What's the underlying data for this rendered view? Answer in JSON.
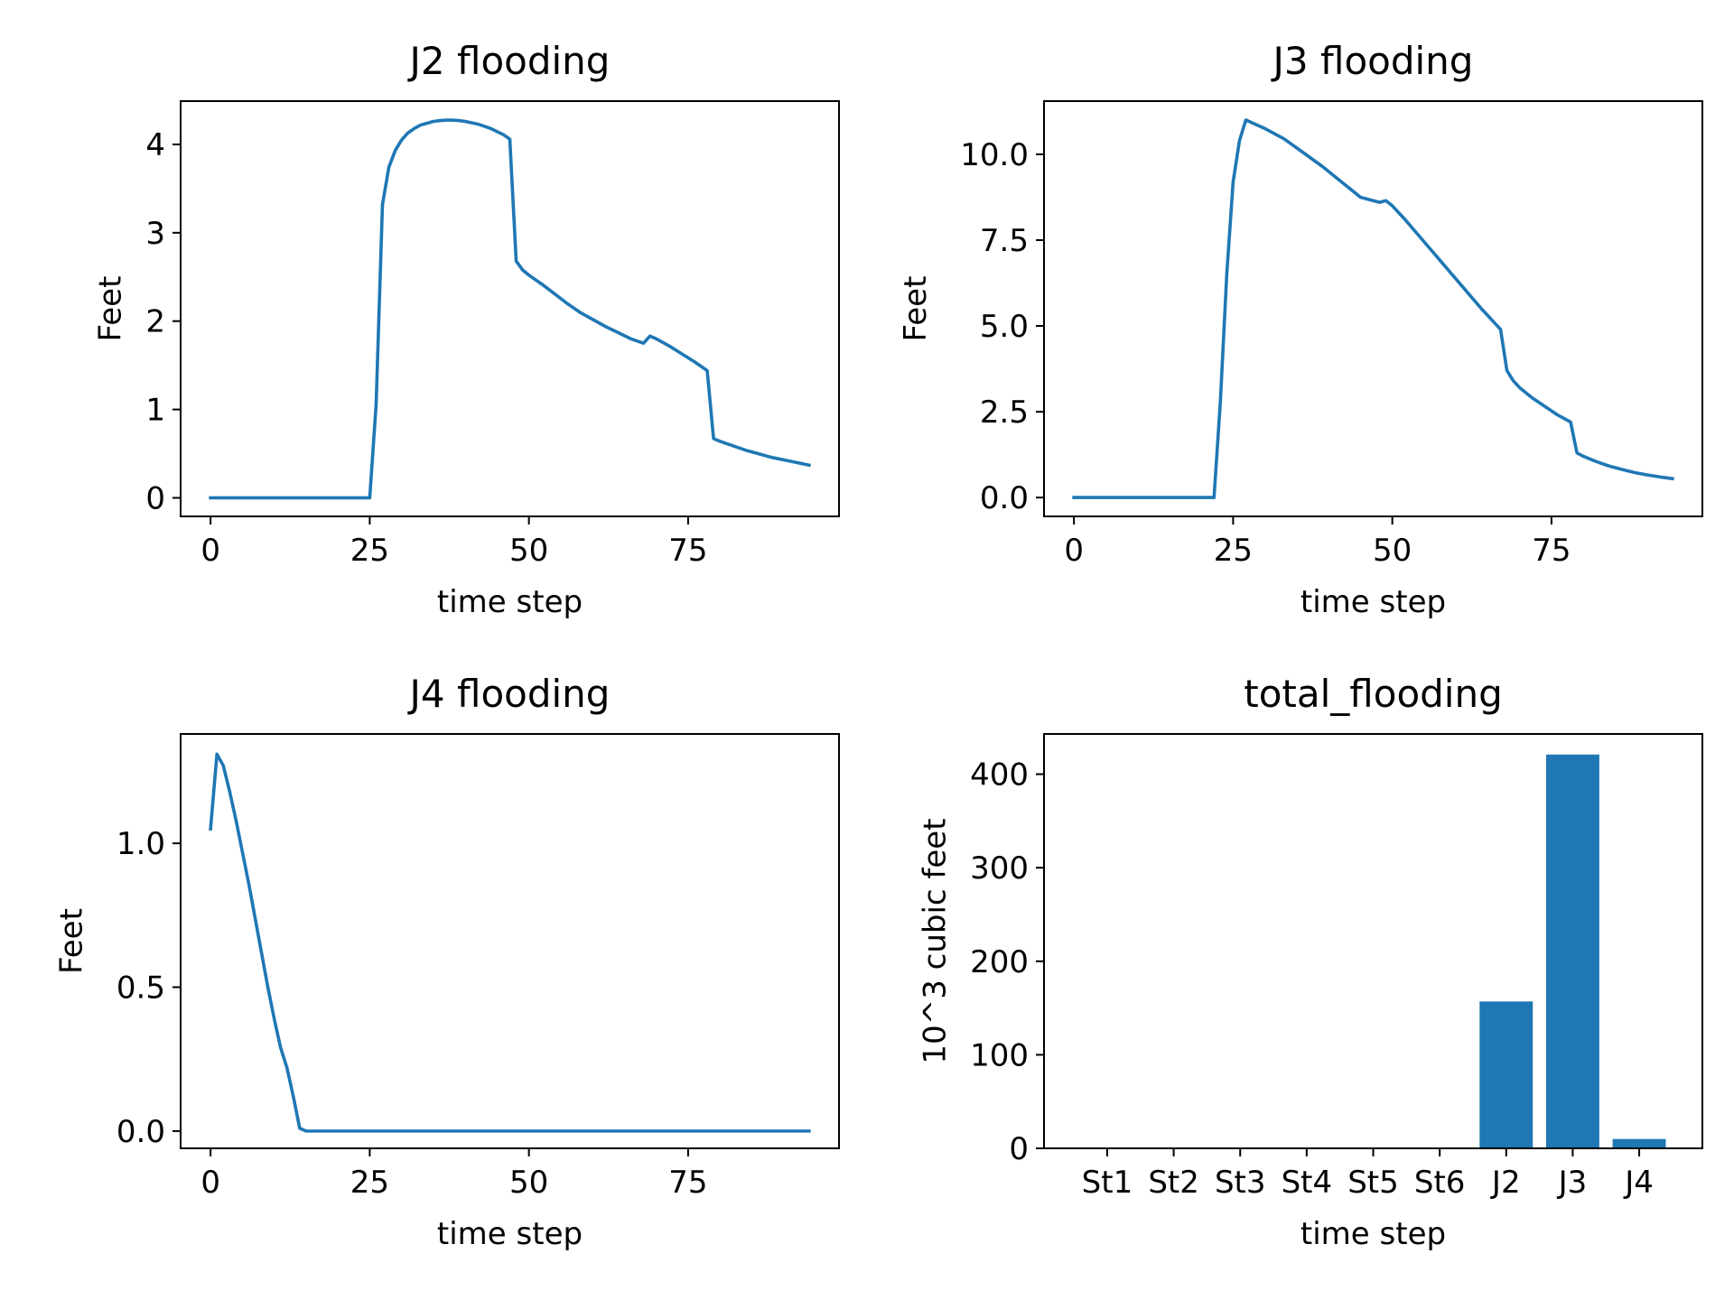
{
  "colors": {
    "series": "#1f77b4",
    "axis": "#000000",
    "background": "#ffffff"
  },
  "chart_data": [
    {
      "type": "line",
      "title": "J2 flooding",
      "xlabel": "time step",
      "ylabel": "Feet",
      "xlim": [
        -4.7,
        98.7
      ],
      "ylim": [
        -0.21,
        4.49
      ],
      "xticks": [
        0,
        25,
        50,
        75
      ],
      "xtick_labels": [
        "0",
        "25",
        "50",
        "75"
      ],
      "yticks": [
        0,
        1,
        2,
        3,
        4
      ],
      "ytick_labels": [
        "0",
        "1",
        "2",
        "3",
        "4"
      ],
      "grid": false,
      "legend": "none",
      "series": [
        {
          "x": [
            0,
            5,
            10,
            15,
            20,
            25,
            26,
            27,
            28,
            29,
            30,
            31,
            32,
            33,
            34,
            35,
            36,
            37,
            38,
            39,
            40,
            42,
            44,
            46,
            47,
            48,
            49,
            50,
            52,
            54,
            56,
            58,
            60,
            62,
            64,
            66,
            68,
            69,
            70,
            72,
            74,
            76,
            78,
            79,
            80,
            82,
            84,
            86,
            88,
            90,
            92,
            94
          ],
          "y": [
            0,
            0,
            0,
            0,
            0,
            0,
            1.05,
            3.32,
            3.74,
            3.93,
            4.05,
            4.13,
            4.18,
            4.22,
            4.24,
            4.26,
            4.27,
            4.275,
            4.275,
            4.27,
            4.26,
            4.23,
            4.18,
            4.11,
            4.06,
            2.68,
            2.58,
            2.52,
            2.42,
            2.31,
            2.2,
            2.1,
            2.02,
            1.94,
            1.87,
            1.8,
            1.75,
            1.83,
            1.8,
            1.72,
            1.63,
            1.54,
            1.44,
            0.67,
            0.64,
            0.59,
            0.54,
            0.5,
            0.46,
            0.43,
            0.4,
            0.37
          ]
        }
      ]
    },
    {
      "type": "line",
      "title": "J3 flooding",
      "xlabel": "time step",
      "ylabel": "Feet",
      "xlim": [
        -4.7,
        98.7
      ],
      "ylim": [
        -0.55,
        11.55
      ],
      "xticks": [
        0,
        25,
        50,
        75
      ],
      "xtick_labels": [
        "0",
        "25",
        "50",
        "75"
      ],
      "yticks": [
        0,
        2.5,
        5,
        7.5,
        10
      ],
      "ytick_labels": [
        "0.0",
        "2.5",
        "5.0",
        "7.5",
        "10.0"
      ],
      "grid": false,
      "legend": "none",
      "series": [
        {
          "x": [
            0,
            5,
            10,
            15,
            20,
            22,
            23,
            24,
            25,
            26,
            27,
            30,
            33,
            36,
            39,
            42,
            45,
            48,
            49,
            50,
            52,
            55,
            58,
            61,
            64,
            67,
            68,
            69,
            70,
            72,
            74,
            76,
            78,
            79,
            80,
            82,
            84,
            86,
            88,
            90,
            92,
            94
          ],
          "y": [
            0,
            0,
            0,
            0,
            0,
            0,
            2.8,
            6.5,
            9.2,
            10.4,
            11.0,
            10.75,
            10.45,
            10.05,
            9.65,
            9.2,
            8.75,
            8.6,
            8.65,
            8.5,
            8.1,
            7.45,
            6.8,
            6.15,
            5.5,
            4.9,
            3.7,
            3.4,
            3.2,
            2.9,
            2.65,
            2.4,
            2.2,
            1.3,
            1.2,
            1.05,
            0.92,
            0.82,
            0.73,
            0.66,
            0.6,
            0.55
          ]
        }
      ]
    },
    {
      "type": "line",
      "title": "J4 flooding",
      "xlabel": "time step",
      "ylabel": "Feet",
      "xlim": [
        -4.7,
        98.7
      ],
      "ylim": [
        -0.06,
        1.38
      ],
      "xticks": [
        0,
        25,
        50,
        75
      ],
      "xtick_labels": [
        "0",
        "25",
        "50",
        "75"
      ],
      "yticks": [
        0,
        0.5,
        1
      ],
      "ytick_labels": [
        "0.0",
        "0.5",
        "1.0"
      ],
      "grid": false,
      "legend": "none",
      "series": [
        {
          "x": [
            0,
            1,
            2,
            3,
            4,
            5,
            6,
            7,
            8,
            9,
            10,
            11,
            12,
            13,
            14,
            15,
            16,
            20,
            30,
            40,
            50,
            60,
            70,
            80,
            90,
            94
          ],
          "y": [
            1.05,
            1.31,
            1.27,
            1.18,
            1.08,
            0.97,
            0.86,
            0.74,
            0.62,
            0.5,
            0.39,
            0.29,
            0.22,
            0.12,
            0.01,
            0,
            0,
            0,
            0,
            0,
            0,
            0,
            0,
            0,
            0,
            0
          ]
        }
      ]
    },
    {
      "type": "bar",
      "title": "total_flooding",
      "xlabel": "time step",
      "ylabel": "10^3 cubic feet",
      "ylim": [
        0,
        443
      ],
      "yticks": [
        0,
        100,
        200,
        300,
        400
      ],
      "ytick_labels": [
        "0",
        "100",
        "200",
        "300",
        "400"
      ],
      "grid": false,
      "legend": "none",
      "categories": [
        "St1",
        "St2",
        "St3",
        "St4",
        "St5",
        "St6",
        "J2",
        "J3",
        "J4"
      ],
      "values": [
        0,
        0,
        0,
        0,
        0,
        0,
        157,
        421,
        10
      ]
    }
  ]
}
